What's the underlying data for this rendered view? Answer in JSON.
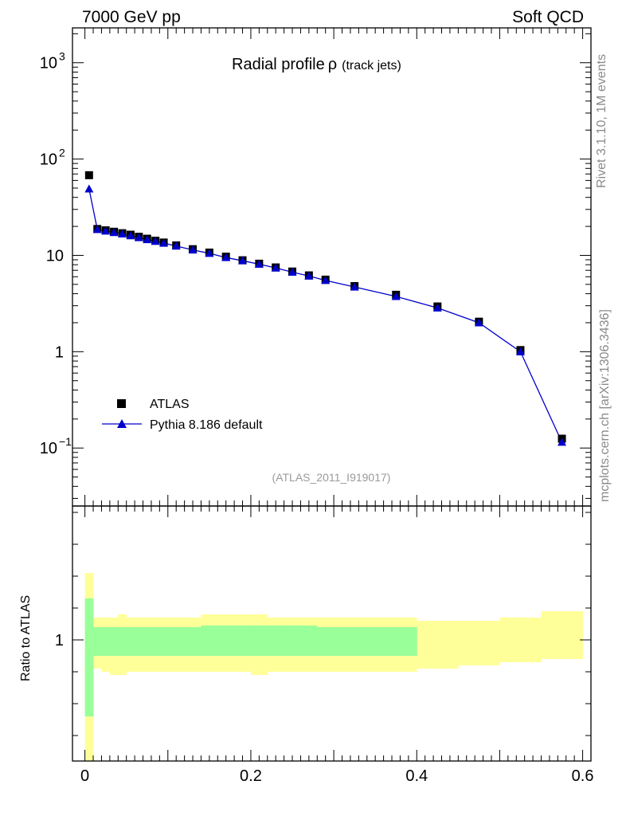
{
  "header": {
    "left": "7000 GeV pp",
    "right": "Soft QCD"
  },
  "side_labels": {
    "top": "Rivet 3.1.10,  1M events",
    "bottom": "mcplots.cern.ch [arXiv:1306.3436]"
  },
  "chart_data": [
    {
      "type": "scatter",
      "title": "Radial profile",
      "title_symbol": "ρ",
      "title_suffix": "(track jets)",
      "analysis_tag": "(ATLAS_2011_I919017)",
      "yscale": "log",
      "xlim": [
        -0.015,
        0.61
      ],
      "ylim": [
        0.025,
        2300
      ],
      "y_ticks": [
        {
          "v": 0.1,
          "label": "10",
          "exp": "−1"
        },
        {
          "v": 1,
          "label": "1",
          "exp": ""
        },
        {
          "v": 10,
          "label": "10",
          "exp": ""
        },
        {
          "v": 100,
          "label": "10",
          "exp": "2"
        },
        {
          "v": 1000,
          "label": "10",
          "exp": "3"
        }
      ],
      "legend_position": "bottom-left",
      "x": [
        0.005,
        0.015,
        0.025,
        0.035,
        0.045,
        0.055,
        0.065,
        0.075,
        0.085,
        0.095,
        0.11,
        0.13,
        0.15,
        0.17,
        0.19,
        0.21,
        0.23,
        0.25,
        0.27,
        0.29,
        0.325,
        0.375,
        0.425,
        0.475,
        0.525,
        0.575
      ],
      "series": [
        {
          "name": "ATLAS",
          "marker": "square",
          "color": "#000000",
          "values": [
            68,
            18.8,
            18.2,
            17.6,
            17.0,
            16.4,
            15.6,
            14.9,
            14.2,
            13.6,
            12.7,
            11.6,
            10.7,
            9.7,
            8.9,
            8.2,
            7.5,
            6.8,
            6.2,
            5.6,
            4.8,
            3.9,
            2.95,
            2.05,
            1.04,
            0.125
          ]
        },
        {
          "name": "Pythia 8.186 default",
          "marker": "triangle",
          "color": "#0000cc",
          "values": [
            49,
            18.6,
            17.9,
            17.3,
            16.7,
            16.0,
            15.3,
            14.6,
            14.0,
            13.4,
            12.5,
            11.4,
            10.5,
            9.5,
            8.8,
            8.1,
            7.4,
            6.7,
            6.1,
            5.5,
            4.7,
            3.75,
            2.85,
            2.0,
            1.0,
            0.115
          ]
        }
      ]
    },
    {
      "type": "area",
      "ylabel": "Ratio to ATLAS",
      "y_tick_label": "1",
      "xlim": [
        -0.015,
        0.61
      ],
      "x_ticks": [
        "0",
        "0.2",
        "0.4",
        "0.6"
      ],
      "ylim": [
        0.62,
        1.42
      ],
      "bands": {
        "yellow": "#ffff99",
        "green": "#99ff99"
      },
      "bins": [
        {
          "lo": 0.0,
          "hi": 0.01,
          "y_lo": 0.5,
          "y_hi": 1.21,
          "g_lo": 0.76,
          "g_hi": 1.13
        },
        {
          "lo": 0.01,
          "hi": 0.02,
          "y_lo": 0.91,
          "y_hi": 1.07,
          "g_lo": 0.95,
          "g_hi": 1.04
        },
        {
          "lo": 0.02,
          "hi": 0.03,
          "y_lo": 0.9,
          "y_hi": 1.07,
          "g_lo": 0.95,
          "g_hi": 1.04
        },
        {
          "lo": 0.03,
          "hi": 0.04,
          "y_lo": 0.89,
          "y_hi": 1.07,
          "g_lo": 0.95,
          "g_hi": 1.04
        },
        {
          "lo": 0.04,
          "hi": 0.05,
          "y_lo": 0.89,
          "y_hi": 1.08,
          "g_lo": 0.95,
          "g_hi": 1.04
        },
        {
          "lo": 0.05,
          "hi": 0.06,
          "y_lo": 0.9,
          "y_hi": 1.07,
          "g_lo": 0.95,
          "g_hi": 1.04
        },
        {
          "lo": 0.06,
          "hi": 0.07,
          "y_lo": 0.9,
          "y_hi": 1.07,
          "g_lo": 0.95,
          "g_hi": 1.04
        },
        {
          "lo": 0.07,
          "hi": 0.08,
          "y_lo": 0.9,
          "y_hi": 1.07,
          "g_lo": 0.95,
          "g_hi": 1.04
        },
        {
          "lo": 0.08,
          "hi": 0.09,
          "y_lo": 0.9,
          "y_hi": 1.07,
          "g_lo": 0.95,
          "g_hi": 1.04
        },
        {
          "lo": 0.09,
          "hi": 0.1,
          "y_lo": 0.9,
          "y_hi": 1.07,
          "g_lo": 0.95,
          "g_hi": 1.04
        },
        {
          "lo": 0.1,
          "hi": 0.12,
          "y_lo": 0.9,
          "y_hi": 1.07,
          "g_lo": 0.95,
          "g_hi": 1.04
        },
        {
          "lo": 0.12,
          "hi": 0.14,
          "y_lo": 0.9,
          "y_hi": 1.07,
          "g_lo": 0.95,
          "g_hi": 1.04
        },
        {
          "lo": 0.14,
          "hi": 0.16,
          "y_lo": 0.9,
          "y_hi": 1.08,
          "g_lo": 0.95,
          "g_hi": 1.045
        },
        {
          "lo": 0.16,
          "hi": 0.18,
          "y_lo": 0.9,
          "y_hi": 1.08,
          "g_lo": 0.95,
          "g_hi": 1.045
        },
        {
          "lo": 0.18,
          "hi": 0.2,
          "y_lo": 0.9,
          "y_hi": 1.08,
          "g_lo": 0.95,
          "g_hi": 1.045
        },
        {
          "lo": 0.2,
          "hi": 0.22,
          "y_lo": 0.89,
          "y_hi": 1.08,
          "g_lo": 0.95,
          "g_hi": 1.045
        },
        {
          "lo": 0.22,
          "hi": 0.24,
          "y_lo": 0.9,
          "y_hi": 1.07,
          "g_lo": 0.95,
          "g_hi": 1.045
        },
        {
          "lo": 0.24,
          "hi": 0.26,
          "y_lo": 0.9,
          "y_hi": 1.07,
          "g_lo": 0.95,
          "g_hi": 1.045
        },
        {
          "lo": 0.26,
          "hi": 0.28,
          "y_lo": 0.9,
          "y_hi": 1.07,
          "g_lo": 0.95,
          "g_hi": 1.045
        },
        {
          "lo": 0.28,
          "hi": 0.3,
          "y_lo": 0.9,
          "y_hi": 1.07,
          "g_lo": 0.95,
          "g_hi": 1.04
        },
        {
          "lo": 0.3,
          "hi": 0.35,
          "y_lo": 0.9,
          "y_hi": 1.07,
          "g_lo": 0.95,
          "g_hi": 1.04
        },
        {
          "lo": 0.35,
          "hi": 0.4,
          "y_lo": 0.9,
          "y_hi": 1.07,
          "g_lo": 0.95,
          "g_hi": 1.04
        },
        {
          "lo": 0.4,
          "hi": 0.45,
          "y_lo": 0.91,
          "y_hi": 1.06,
          "g_lo": null,
          "g_hi": null
        },
        {
          "lo": 0.45,
          "hi": 0.5,
          "y_lo": 0.92,
          "y_hi": 1.06,
          "g_lo": null,
          "g_hi": null
        },
        {
          "lo": 0.5,
          "hi": 0.55,
          "y_lo": 0.93,
          "y_hi": 1.07,
          "g_lo": null,
          "g_hi": null
        },
        {
          "lo": 0.55,
          "hi": 0.6,
          "y_lo": 0.94,
          "y_hi": 1.09,
          "g_lo": null,
          "g_hi": null
        }
      ]
    }
  ]
}
